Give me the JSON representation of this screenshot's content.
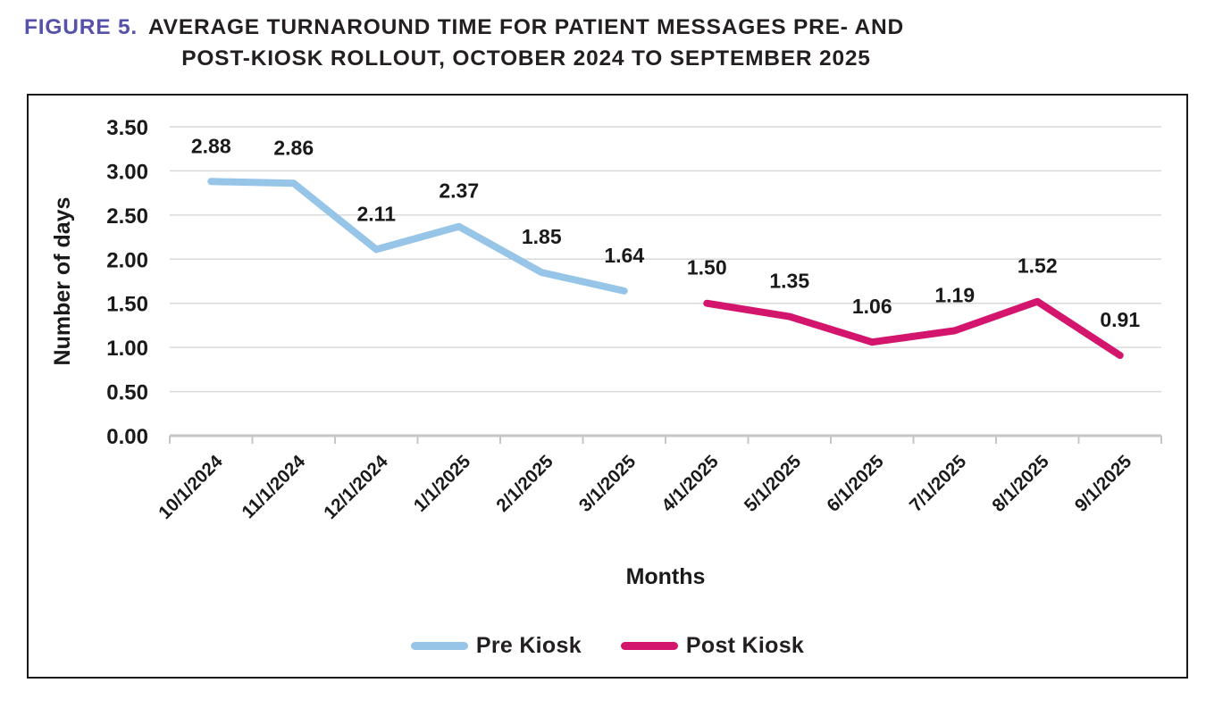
{
  "title": {
    "figure_label": "FIGURE 5.",
    "figure_label_color": "#5651A9",
    "line1": "AVERAGE TURNAROUND TIME FOR PATIENT MESSAGES PRE- AND",
    "line2": "POST-KIOSK ROLLOUT, OCTOBER 2024 TO SEPTEMBER 2025",
    "text_color": "#231F20"
  },
  "chart_data": {
    "type": "line",
    "title": "Average turnaround time for patient messages pre- and post-kiosk rollout, October 2024 to September 2025",
    "categories": [
      "10/1/2024",
      "11/1/2024",
      "12/1/2024",
      "1/1/2025",
      "2/1/2025",
      "3/1/2025",
      "4/1/2025",
      "5/1/2025",
      "6/1/2025",
      "7/1/2025",
      "8/1/2025",
      "9/1/2025"
    ],
    "series": [
      {
        "name": "Pre Kiosk",
        "color": "#96C5E8",
        "values": [
          2.88,
          2.86,
          2.11,
          2.37,
          1.85,
          1.64,
          null,
          null,
          null,
          null,
          null,
          null
        ]
      },
      {
        "name": "Post Kiosk",
        "color": "#D4156E",
        "values": [
          null,
          null,
          null,
          null,
          null,
          null,
          1.5,
          1.35,
          1.06,
          1.19,
          1.52,
          0.91
        ]
      }
    ],
    "xlabel": "Months",
    "ylabel": "Number of days",
    "ylim": [
      0,
      3.5
    ],
    "yticks": [
      0.0,
      0.5,
      1.0,
      1.5,
      2.0,
      2.5,
      3.0,
      3.5
    ],
    "ytick_labels": [
      "0.00",
      "0.50",
      "1.00",
      "1.50",
      "2.00",
      "2.50",
      "3.00",
      "3.50"
    ],
    "grid": true,
    "legend_position": "bottom",
    "data_label_decimals": 2,
    "gridline_color": "#D9D9D9",
    "axis_color": "#C6C6C6",
    "label_color": "#1A1A1A"
  }
}
